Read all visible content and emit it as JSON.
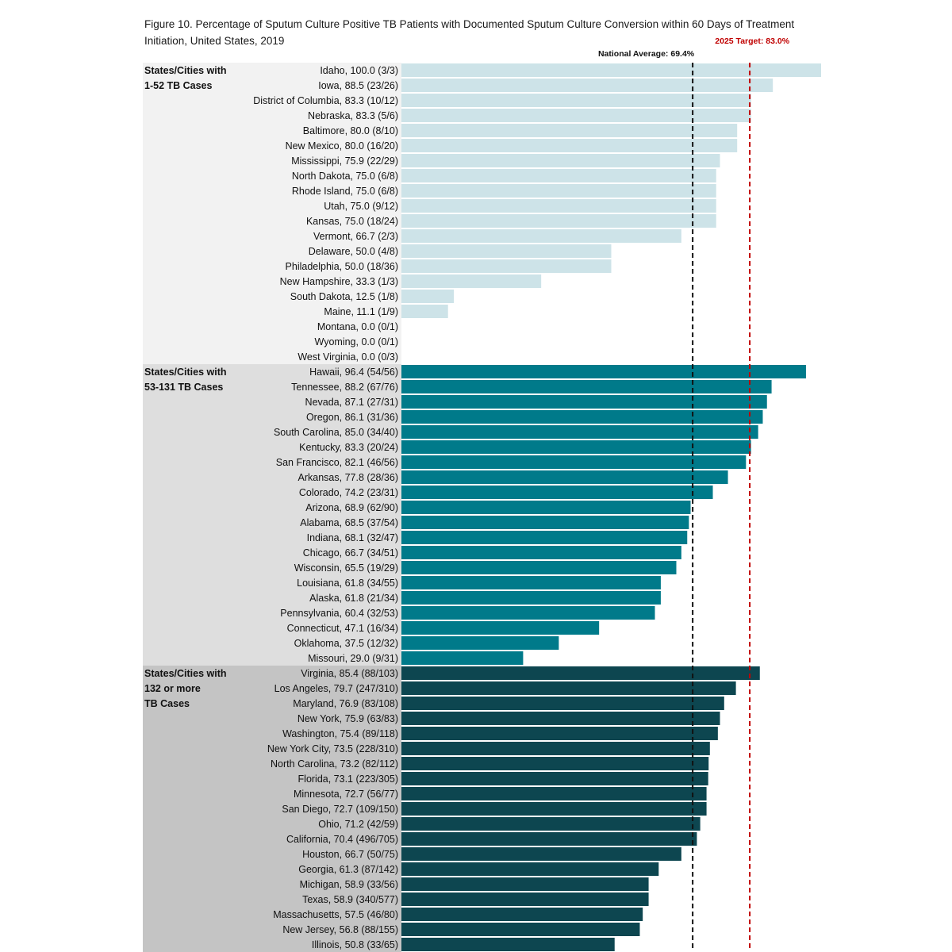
{
  "title": "Figure 10.  Percentage of Sputum Culture Positive TB Patients with Documented Sputum Culture Conversion within 60 Days of Treatment Initiation, United States, 2019",
  "chart_data": {
    "type": "bar",
    "orientation": "horizontal",
    "xlim": [
      0,
      100
    ],
    "reference_lines": [
      {
        "label": "National Average: 69.4%",
        "value": 69.4,
        "color": "#111111"
      },
      {
        "label": "2025 Target: 83.0%",
        "value": 83.0,
        "color": "#c00000"
      }
    ],
    "groups": [
      {
        "label_lines": [
          "States/Cities with",
          "1-52 TB Cases"
        ],
        "bar_color": "#cde3e8",
        "band_color": "#f2f2f2",
        "bars": [
          {
            "label": "Idaho, 100.0 (3/3)",
            "value": 100.0
          },
          {
            "label": "Iowa, 88.5 (23/26)",
            "value": 88.5
          },
          {
            "label": "District of Columbia, 83.3 (10/12)",
            "value": 83.3
          },
          {
            "label": "Nebraska, 83.3 (5/6)",
            "value": 83.3
          },
          {
            "label": "Baltimore, 80.0 (8/10)",
            "value": 80.0
          },
          {
            "label": "New Mexico, 80.0 (16/20)",
            "value": 80.0
          },
          {
            "label": "Mississippi, 75.9 (22/29)",
            "value": 75.9
          },
          {
            "label": "North Dakota, 75.0 (6/8)",
            "value": 75.0
          },
          {
            "label": "Rhode Island, 75.0 (6/8)",
            "value": 75.0
          },
          {
            "label": "Utah, 75.0 (9/12)",
            "value": 75.0
          },
          {
            "label": "Kansas, 75.0 (18/24)",
            "value": 75.0
          },
          {
            "label": "Vermont, 66.7 (2/3)",
            "value": 66.7
          },
          {
            "label": "Delaware, 50.0 (4/8)",
            "value": 50.0
          },
          {
            "label": "Philadelphia, 50.0 (18/36)",
            "value": 50.0
          },
          {
            "label": "New Hampshire, 33.3 (1/3)",
            "value": 33.3
          },
          {
            "label": "South Dakota, 12.5 (1/8)",
            "value": 12.5
          },
          {
            "label": "Maine, 11.1 (1/9)",
            "value": 11.1
          },
          {
            "label": "Montana, 0.0 (0/1)",
            "value": 0.0
          },
          {
            "label": "Wyoming, 0.0 (0/1)",
            "value": 0.0
          },
          {
            "label": "West Virginia, 0.0 (0/3)",
            "value": 0.0
          }
        ]
      },
      {
        "label_lines": [
          "States/Cities with",
          "53-131 TB Cases"
        ],
        "bar_color": "#007a8a",
        "band_color": "#dedede",
        "bars": [
          {
            "label": "Hawaii, 96.4 (54/56)",
            "value": 96.4
          },
          {
            "label": "Tennessee, 88.2 (67/76)",
            "value": 88.2
          },
          {
            "label": "Nevada, 87.1 (27/31)",
            "value": 87.1
          },
          {
            "label": "Oregon, 86.1 (31/36)",
            "value": 86.1
          },
          {
            "label": "South Carolina, 85.0 (34/40)",
            "value": 85.0
          },
          {
            "label": "Kentucky, 83.3 (20/24)",
            "value": 83.3
          },
          {
            "label": "San Francisco, 82.1 (46/56)",
            "value": 82.1
          },
          {
            "label": "Arkansas, 77.8 (28/36)",
            "value": 77.8
          },
          {
            "label": "Colorado, 74.2 (23/31)",
            "value": 74.2
          },
          {
            "label": "Arizona, 68.9 (62/90)",
            "value": 68.9
          },
          {
            "label": "Alabama, 68.5 (37/54)",
            "value": 68.5
          },
          {
            "label": "Indiana, 68.1 (32/47)",
            "value": 68.1
          },
          {
            "label": "Chicago, 66.7 (34/51)",
            "value": 66.7
          },
          {
            "label": "Wisconsin, 65.5 (19/29)",
            "value": 65.5
          },
          {
            "label": "Louisiana, 61.8 (34/55)",
            "value": 61.8
          },
          {
            "label": "Alaska, 61.8 (21/34)",
            "value": 61.8
          },
          {
            "label": "Pennsylvania, 60.4 (32/53)",
            "value": 60.4
          },
          {
            "label": "Connecticut, 47.1 (16/34)",
            "value": 47.1
          },
          {
            "label": "Oklahoma, 37.5 (12/32)",
            "value": 37.5
          },
          {
            "label": "Missouri, 29.0 (9/31)",
            "value": 29.0
          }
        ]
      },
      {
        "label_lines": [
          "States/Cities with",
          "132 or more",
          "TB Cases"
        ],
        "bar_color": "#0d4650",
        "band_color": "#c4c4c4",
        "bars": [
          {
            "label": "Virginia, 85.4 (88/103)",
            "value": 85.4
          },
          {
            "label": "Los Angeles, 79.7 (247/310)",
            "value": 79.7
          },
          {
            "label": "Maryland, 76.9 (83/108)",
            "value": 76.9
          },
          {
            "label": "New York, 75.9 (63/83)",
            "value": 75.9
          },
          {
            "label": "Washington, 75.4 (89/118)",
            "value": 75.4
          },
          {
            "label": "New York City, 73.5 (228/310)",
            "value": 73.5
          },
          {
            "label": "North Carolina, 73.2 (82/112)",
            "value": 73.2
          },
          {
            "label": "Florida, 73.1 (223/305)",
            "value": 73.1
          },
          {
            "label": "Minnesota, 72.7 (56/77)",
            "value": 72.7
          },
          {
            "label": "San Diego, 72.7 (109/150)",
            "value": 72.7
          },
          {
            "label": "Ohio, 71.2 (42/59)",
            "value": 71.2
          },
          {
            "label": "California, 70.4 (496/705)",
            "value": 70.4
          },
          {
            "label": "Houston, 66.7 (50/75)",
            "value": 66.7
          },
          {
            "label": "Georgia, 61.3 (87/142)",
            "value": 61.3
          },
          {
            "label": "Michigan, 58.9 (33/56)",
            "value": 58.9
          },
          {
            "label": "Texas, 58.9 (340/577)",
            "value": 58.9
          },
          {
            "label": "Massachusetts, 57.5 (46/80)",
            "value": 57.5
          },
          {
            "label": "New Jersey, 56.8 (88/155)",
            "value": 56.8
          },
          {
            "label": "Illinois, 50.8 (33/65)",
            "value": 50.8
          }
        ]
      }
    ]
  }
}
